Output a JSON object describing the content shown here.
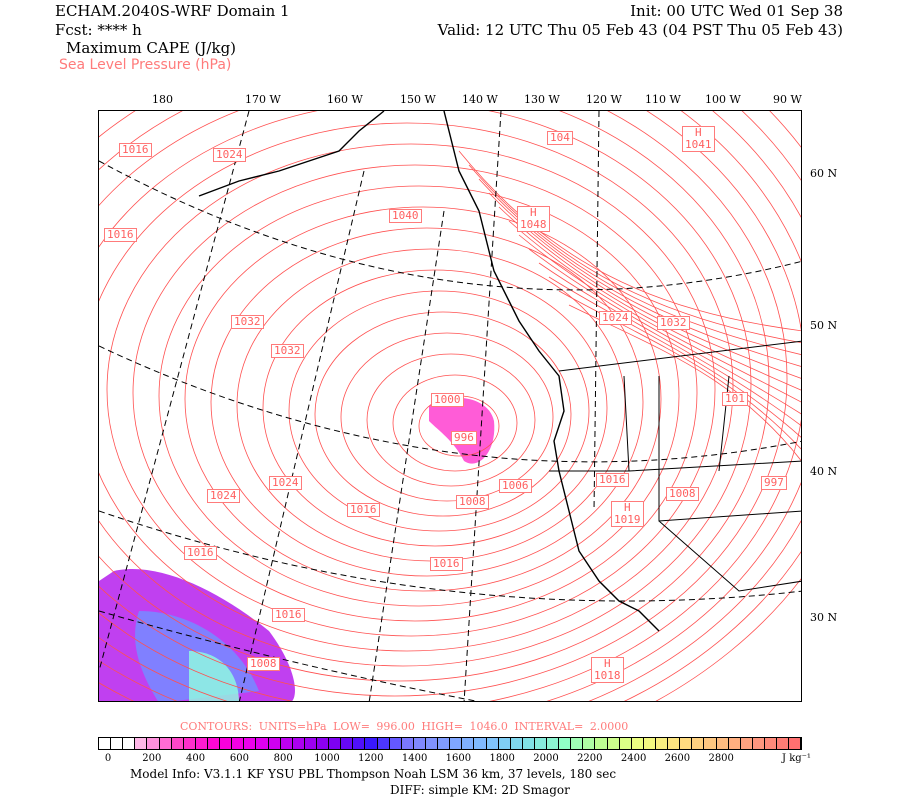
{
  "header": {
    "title": "ECHAM.2040S-WRF Domain 1",
    "fcst": "Fcst: **** h",
    "init": "Init: 00 UTC Wed 01 Sep 38",
    "valid": "Valid: 12 UTC Thu 05 Feb 43 (04 PST Thu 05 Feb 43)",
    "field1": "Maximum CAPE (J/kg)",
    "field2": "Sea Level Pressure (hPa)"
  },
  "map": {
    "lon_labels": [
      "180",
      "170 W",
      "160 W",
      "150 W",
      "140 W",
      "130 W",
      "120 W",
      "110 W",
      "100 W",
      "90 W"
    ],
    "lat_labels": [
      "60 N",
      "50 N",
      "40 N",
      "30 N"
    ],
    "contour_color": "#ff5050",
    "cape_color": "#ff40d0",
    "pressure_labels": [
      {
        "text": "1016"
      },
      {
        "text": "1024"
      },
      {
        "text": "1040"
      },
      {
        "text": "H\n1048"
      },
      {
        "text": "H\n1041"
      },
      {
        "text": "104"
      },
      {
        "text": "1016"
      },
      {
        "text": "1032"
      },
      {
        "text": "1032"
      },
      {
        "text": "1024"
      },
      {
        "text": "1032"
      },
      {
        "text": "1000"
      },
      {
        "text": "996"
      },
      {
        "text": "1006"
      },
      {
        "text": "1008"
      },
      {
        "text": "1016"
      },
      {
        "text": "1008"
      },
      {
        "text": "H\n1019"
      },
      {
        "text": "997"
      },
      {
        "text": "101"
      },
      {
        "text": "1024"
      },
      {
        "text": "1024"
      },
      {
        "text": "1016"
      },
      {
        "text": "1016"
      },
      {
        "text": "1016"
      },
      {
        "text": "1016"
      },
      {
        "text": "1008"
      },
      {
        "text": "H\n1018"
      }
    ]
  },
  "legend": {
    "contours": "CONTOURS:  UNITS=hPa  LOW=  996.00     HIGH=  1046.0     INTERVAL=   2.0000",
    "ticks": [
      "0",
      "200",
      "400",
      "600",
      "800",
      "1000",
      "1200",
      "1400",
      "1600",
      "1800",
      "2000",
      "2200",
      "2400",
      "2600",
      "2800"
    ],
    "units": "J kg⁻¹",
    "color_stops": [
      "#ffffff",
      "#ffffff",
      "#ffffff",
      "#ffb8e8",
      "#ff40c8",
      "#ff00d8",
      "#e800f0",
      "#b000f0",
      "#8000f0",
      "#3818ff",
      "#8080ff",
      "#80a0ff",
      "#80c0ff",
      "#80e0e8",
      "#90ffc8",
      "#c0ff90",
      "#f0ff80",
      "#ffe080",
      "#ffc080",
      "#ff9880",
      "#ff7070"
    ]
  },
  "footer": {
    "model_info": "Model Info: V3.1.1    KF        YSU PBL   Thompson     Noah LSM   36 km,    37 levels,   180 sec",
    "diff": "DIFF: simple KM: 2D Smagor"
  }
}
